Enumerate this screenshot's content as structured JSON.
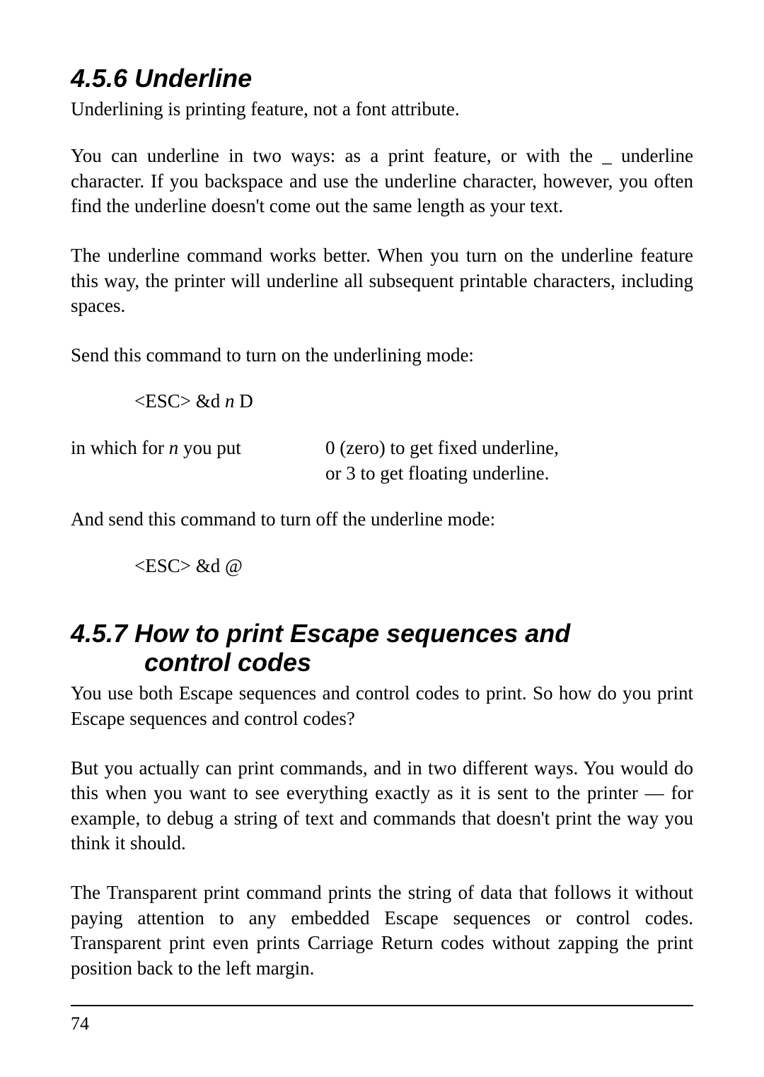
{
  "section1": {
    "heading": "4.5.6 Underline",
    "p1": "Underlining is printing feature, not a font attribute.",
    "p2": "You can underline in two ways: as a print feature, or with the _ underline character. If you backspace and use the underline character, however, you often find the underline doesn't come out the same length as your text.",
    "p3": "The underline command works better. When you turn on the underline feature this way, the printer will underline all subsequent printable characters, including spaces.",
    "p4": "Send this command to turn on the underlining mode:",
    "cmd1_a": "<ESC> &d ",
    "cmd1_n": "n",
    "cmd1_b": " D",
    "which_a": "in which for ",
    "which_n": "n",
    "which_b": " you put",
    "opt1": "0 (zero) to get fixed underline,",
    "opt2": "or 3 to get floating underline.",
    "p5": "And send this command to turn off the underline mode:",
    "cmd2": "<ESC> &d @"
  },
  "section2": {
    "heading_a": "4.5.7 How to print Escape sequences and",
    "heading_b": "control codes",
    "p1": "You use both Escape sequences and control codes to print. So how do you print Escape sequences and control codes?",
    "p2": "But you actually can print commands, and in two different ways. You would do this when you want to see everything exactly as it is sent to the printer — for example, to debug a string of text and commands that doesn't print the way you think it should.",
    "p3": "The Transparent print command prints the string of data that follows it without paying attention to any embedded Escape sequences or control codes. Transparent print even prints Carriage Return codes without zapping the print position back to the left margin."
  },
  "page_number": "74"
}
